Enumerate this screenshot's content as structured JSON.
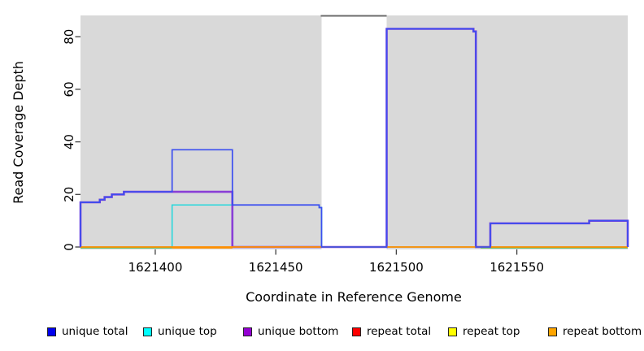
{
  "chart_data": {
    "type": "line",
    "subtype": "step-coverage",
    "title": "",
    "xlabel": "Coordinate in Reference Genome",
    "ylabel": "Read Coverage Depth",
    "xlim": [
      1621369,
      1621596
    ],
    "ylim": [
      0,
      88
    ],
    "x_ticks": [
      1621400,
      1621450,
      1621500,
      1621550
    ],
    "y_ticks": [
      0,
      20,
      40,
      60,
      80
    ],
    "grid": false,
    "legend_position": "bottom",
    "plot_bg": "#D9D9D9",
    "repeat_region_band": {
      "x1": 1621469,
      "x2": 1621496,
      "fill": "#FFFFFF",
      "top_border_color": "#6B6B6B"
    },
    "series": [
      {
        "name": "unique total",
        "color": "#3B4EF0",
        "legend_color": "#0000EE",
        "width": 1.7,
        "steps": [
          [
            1621369,
            17
          ],
          [
            1621377,
            18
          ],
          [
            1621379,
            19
          ],
          [
            1621382,
            20
          ],
          [
            1621387,
            21
          ],
          [
            1621407,
            37
          ],
          [
            1621432,
            16
          ],
          [
            1621468,
            15
          ],
          [
            1621469,
            0
          ],
          [
            1621496,
            83
          ],
          [
            1621532,
            82
          ],
          [
            1621533,
            0
          ],
          [
            1621539,
            9
          ],
          [
            1621580,
            10
          ],
          [
            1621596,
            0
          ]
        ]
      },
      {
        "name": "unique top",
        "color": "#29D8DC",
        "legend_color": "#00FFFF",
        "width": 1.6,
        "steps": [
          [
            1621369,
            0
          ],
          [
            1621407,
            16
          ],
          [
            1621468,
            15
          ],
          [
            1621469,
            0
          ],
          [
            1621596,
            0
          ]
        ]
      },
      {
        "name": "unique bottom",
        "color": "#8A3FD6",
        "legend_color": "#9400D3",
        "width": 2.6,
        "steps": [
          [
            1621369,
            17
          ],
          [
            1621377,
            18
          ],
          [
            1621379,
            19
          ],
          [
            1621382,
            20
          ],
          [
            1621387,
            21
          ],
          [
            1621407,
            21
          ],
          [
            1621432,
            0
          ],
          [
            1621496,
            83
          ],
          [
            1621532,
            82
          ],
          [
            1621533,
            0
          ],
          [
            1621539,
            9
          ],
          [
            1621580,
            10
          ],
          [
            1621596,
            0
          ]
        ]
      },
      {
        "name": "repeat total",
        "color": "#E8485E",
        "legend_color": "#FF0000",
        "width": 1.3,
        "steps": [
          [
            1621369,
            0
          ],
          [
            1621596,
            0
          ]
        ]
      },
      {
        "name": "repeat top",
        "color": "#F2E442",
        "legend_color": "#FFFF00",
        "width": 1.0,
        "steps": [
          [
            1621369,
            0
          ],
          [
            1621596,
            0
          ]
        ]
      },
      {
        "name": "repeat bottom",
        "color": "#FF9100",
        "legend_color": "#FFA500",
        "width": 1.8,
        "steps": [
          [
            1621369,
            0
          ],
          [
            1621596,
            0
          ]
        ]
      }
    ],
    "zero_line_overlays": [
      {
        "color": "#52BA52",
        "x1": 1621369,
        "x2": 1621407,
        "width": 1.6
      },
      {
        "color": "#FF9100",
        "x1": 1621407,
        "x2": 1621432,
        "width": 1.8
      },
      {
        "color": "#52BA52",
        "x1": 1621535,
        "x2": 1621596,
        "width": 1.6
      }
    ]
  },
  "layout_note": "step values hold from their x until the next step x"
}
